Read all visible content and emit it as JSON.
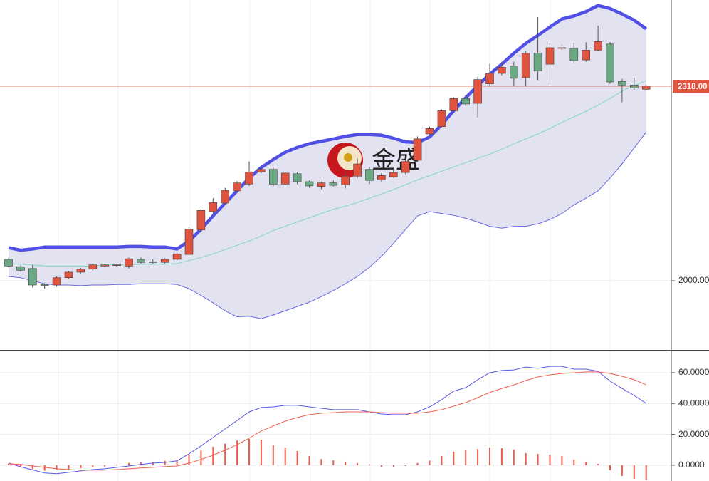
{
  "chart_data": [
    {
      "type": "candlestick",
      "categories": [
        null,
        null,
        null,
        null,
        null,
        null,
        null,
        null,
        null,
        null,
        null,
        null,
        null,
        null,
        null,
        null,
        null,
        null,
        null,
        null,
        null,
        null,
        null,
        null,
        null,
        null,
        null,
        null,
        null,
        null,
        null,
        null,
        null,
        null,
        null,
        null,
        null,
        null,
        null,
        null,
        null,
        null,
        null,
        null,
        null,
        null,
        null,
        null,
        null,
        null,
        null,
        null,
        null,
        null
      ],
      "open": [
        2035,
        2023,
        2020,
        1994,
        1993,
        2005,
        2014,
        2019,
        2024,
        2025,
        2024,
        2035,
        2031,
        2030,
        2035,
        2043,
        2083,
        2113,
        2127,
        2147,
        2158,
        2178,
        2182,
        2158,
        2175,
        2162,
        2154,
        2160,
        2157,
        2171,
        2182,
        2165,
        2170,
        2177,
        2197,
        2240,
        2252,
        2278,
        2298,
        2290,
        2322,
        2339,
        2351,
        2332,
        2372,
        2354,
        2380,
        2380,
        2361,
        2377,
        2387,
        2326,
        2320,
        2313
      ],
      "high": [
        2037,
        2025,
        2026,
        1996,
        2007,
        2016,
        2021,
        2028,
        2028,
        2028,
        2038,
        2038,
        2035,
        2037,
        2046,
        2087,
        2118,
        2135,
        2152,
        2163,
        2195,
        2185,
        2186,
        2178,
        2178,
        2164,
        2162,
        2164,
        2180,
        2200,
        2186,
        2176,
        2186,
        2198,
        2236,
        2252,
        2280,
        2300,
        2304,
        2334,
        2355,
        2358,
        2358,
        2375,
        2431,
        2388,
        2385,
        2389,
        2390,
        2417,
        2390,
        2330,
        2332,
        2320
      ],
      "low": [
        2022,
        2015,
        1989,
        1987,
        1990,
        2003,
        2012,
        2017,
        2022,
        2023,
        2020,
        2028,
        2028,
        2028,
        2033,
        2040,
        2080,
        2110,
        2124,
        2144,
        2155,
        2176,
        2154,
        2156,
        2158,
        2152,
        2150,
        2154,
        2151,
        2168,
        2158,
        2162,
        2168,
        2174,
        2194,
        2238,
        2250,
        2276,
        2286,
        2267,
        2318,
        2336,
        2318,
        2318,
        2328,
        2320,
        2375,
        2356,
        2358,
        2375,
        2322,
        2292,
        2312,
        2311
      ],
      "close": [
        2024,
        2017,
        1993,
        1992,
        2005,
        2014,
        2019,
        2026,
        2026,
        2026,
        2036,
        2030,
        2030,
        2035,
        2044,
        2084,
        2115,
        2128,
        2148,
        2160,
        2178,
        2182,
        2158,
        2176,
        2162,
        2155,
        2160,
        2156,
        2171,
        2191,
        2164,
        2172,
        2177,
        2195,
        2232,
        2249,
        2278,
        2298,
        2289,
        2329,
        2339,
        2349,
        2331,
        2372,
        2343,
        2381,
        2381,
        2360,
        2377,
        2391,
        2325,
        2320,
        2315,
        2318
      ],
      "up_color": "#e0533f",
      "down_color": "#6aa884",
      "band_fill": "#e2e2f1",
      "lines": [
        {
          "color": "#5050e6",
          "values": [
            2054,
            2050,
            2052,
            2055,
            2055,
            2055,
            2055,
            2055,
            2055,
            2055,
            2056,
            2056,
            2055,
            2055,
            2052,
            2065,
            2084,
            2106,
            2127,
            2147,
            2168,
            2185,
            2198,
            2210,
            2218,
            2224,
            2228,
            2232,
            2236,
            2239,
            2239,
            2238,
            2233,
            2227,
            2226,
            2235,
            2255,
            2278,
            2299,
            2319,
            2338,
            2354,
            2372,
            2388,
            2401,
            2415,
            2428,
            2433,
            2440,
            2450,
            2445,
            2436,
            2426,
            2412
          ]
        },
        {
          "color": "#7fd6c6",
          "values": [
            2028,
            2027,
            2026,
            2024,
            2024,
            2024,
            2024,
            2024,
            2026,
            2026,
            2026,
            2027,
            2027,
            2027,
            2028,
            2033,
            2038,
            2044,
            2051,
            2058,
            2065,
            2073,
            2082,
            2089,
            2096,
            2103,
            2110,
            2117,
            2122,
            2128,
            2135,
            2142,
            2149,
            2157,
            2165,
            2172,
            2179,
            2186,
            2193,
            2200,
            2207,
            2215,
            2224,
            2232,
            2240,
            2249,
            2259,
            2268,
            2277,
            2287,
            2298,
            2310,
            2319,
            2327
          ]
        },
        {
          "color": "#6868e0",
          "values": [
            2007,
            2005,
            2000,
            1995,
            1993,
            1993,
            1992,
            1993,
            1993,
            1994,
            1994,
            1995,
            1995,
            1995,
            1994,
            1987,
            1976,
            1964,
            1951,
            1941,
            1942,
            1938,
            1944,
            1951,
            1958,
            1965,
            1974,
            1984,
            1995,
            2007,
            2022,
            2040,
            2061,
            2084,
            2106,
            2113,
            2110,
            2107,
            2102,
            2096,
            2089,
            2086,
            2089,
            2089,
            2093,
            2100,
            2110,
            2124,
            2135,
            2147,
            2168,
            2191,
            2217,
            2243
          ]
        }
      ],
      "ylim": [
        1887,
        2459
      ],
      "yticks": [
        {
          "value": 2000,
          "label": "2000.00"
        }
      ],
      "price_line": {
        "value": 2318,
        "label": "2318.00"
      },
      "price_line_color": "#e0533f",
      "watermark": "金盛",
      "grid": true
    },
    {
      "type": "macd",
      "categories": [
        null,
        null,
        null,
        null,
        null,
        null,
        null,
        null,
        null,
        null,
        null,
        null,
        null,
        null,
        null,
        null,
        null,
        null,
        null,
        null,
        null,
        null,
        null,
        null,
        null,
        null,
        null,
        null,
        null,
        null,
        null,
        null,
        null,
        null,
        null,
        null,
        null,
        null,
        null,
        null,
        null,
        null,
        null,
        null,
        null,
        null,
        null,
        null,
        null,
        null,
        null,
        null,
        null,
        null
      ],
      "bars": {
        "color": "#f05a4a",
        "values": [
          1,
          -1,
          -2.5,
          -3.5,
          -3,
          -2.5,
          -2,
          -1.4,
          -0.9,
          0.5,
          1.4,
          1.8,
          2.3,
          2.8,
          3.2,
          7,
          9.5,
          12,
          14,
          16,
          17,
          16.6,
          13,
          11.5,
          9.2,
          6,
          4,
          3.2,
          2.3,
          1.4,
          0.5,
          -1,
          -1,
          -0.5,
          1.4,
          3,
          6,
          8.8,
          9.7,
          10.6,
          11.5,
          11,
          10.2,
          7.8,
          7.4,
          6.9,
          6,
          3.7,
          2.3,
          0.9,
          -3.2,
          -6.9,
          -8.8,
          -9.7
        ]
      },
      "series": [
        {
          "color": "#5a5ae6",
          "values": [
            1.4,
            -1,
            -3,
            -5,
            -5.5,
            -4.6,
            -3.7,
            -2.8,
            -2.3,
            -1.4,
            -0.5,
            0.5,
            1.4,
            1.8,
            2.8,
            7.4,
            12.5,
            18,
            23.5,
            29,
            34.6,
            37.4,
            37.8,
            38.8,
            38.8,
            37.8,
            36.9,
            36,
            36,
            36,
            34.6,
            33.2,
            32.8,
            32.8,
            34.6,
            37.8,
            42.5,
            48,
            50.3,
            55.4,
            60,
            61.4,
            61.8,
            63.7,
            62.8,
            64.1,
            64.1,
            62.3,
            62.3,
            60.9,
            54.5,
            49.8,
            45.2,
            40.1
          ]
        },
        {
          "color": "#f06050",
          "values": [
            0.9,
            0.5,
            -0.5,
            -1.4,
            -2.3,
            -2.8,
            -3.2,
            -3.2,
            -3.2,
            -2.8,
            -2.3,
            -1.8,
            -1.4,
            -0.9,
            -0.5,
            1.4,
            3.7,
            6.5,
            9.7,
            13.4,
            17.5,
            22.2,
            25.4,
            28.6,
            30.9,
            32.8,
            33.7,
            34.1,
            34.6,
            34.6,
            34.6,
            34.1,
            33.7,
            33.7,
            33.7,
            34.6,
            36,
            38.3,
            40.6,
            43.8,
            47.1,
            49.8,
            52.1,
            54.9,
            57.2,
            58.6,
            59.5,
            60,
            60.5,
            60.5,
            59.5,
            57.7,
            55.4,
            52.1
          ]
        }
      ],
      "ylim": [
        -10.2,
        74.3
      ],
      "yticks": [
        {
          "value": 60,
          "label": "60.0000"
        },
        {
          "value": 40,
          "label": "40.0000"
        },
        {
          "value": 20,
          "label": "20.0000"
        },
        {
          "value": 0,
          "label": "0.0000"
        }
      ],
      "grid": true
    }
  ]
}
